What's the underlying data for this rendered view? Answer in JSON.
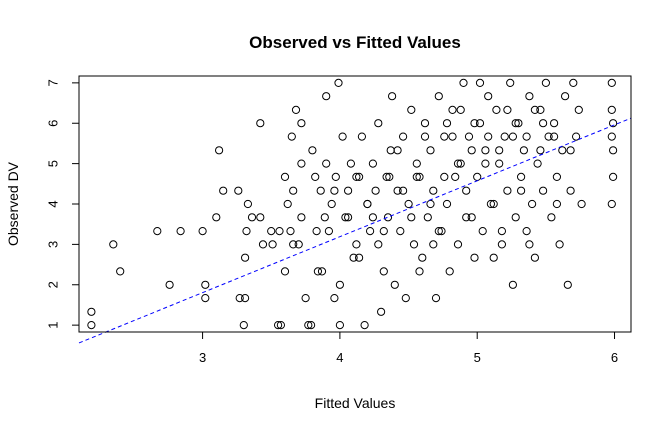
{
  "chart_data": {
    "type": "scatter",
    "title": "Observed vs Fitted Values",
    "xlabel": "Fitted Values",
    "ylabel": "Observed DV",
    "xlim": [
      2.1,
      6.12
    ],
    "ylim": [
      0.83,
      7.17
    ],
    "x_ticks": [
      "3",
      "4",
      "5",
      "6"
    ],
    "y_ticks": [
      "1",
      "2",
      "3",
      "4",
      "5",
      "6",
      "7"
    ],
    "grid": false,
    "marker": "open-circle",
    "colors": {
      "points": "#000000",
      "fit_line": "#0000ff",
      "axes": "#000000"
    },
    "fit_line": {
      "style": "dashed",
      "intercept": -2.35,
      "slope": 1.385
    },
    "points": [
      [
        2.19,
        1.33
      ],
      [
        2.19,
        1.0
      ],
      [
        2.35,
        3.0
      ],
      [
        2.4,
        2.33
      ],
      [
        2.67,
        3.33
      ],
      [
        2.76,
        2.0
      ],
      [
        2.84,
        3.33
      ],
      [
        3.0,
        3.33
      ],
      [
        3.02,
        2.0
      ],
      [
        3.02,
        1.67
      ],
      [
        3.12,
        5.33
      ],
      [
        3.15,
        4.33
      ],
      [
        3.1,
        3.67
      ],
      [
        3.26,
        4.33
      ],
      [
        3.27,
        1.67
      ],
      [
        3.3,
        1.0
      ],
      [
        3.31,
        2.67
      ],
      [
        3.32,
        3.33
      ],
      [
        3.33,
        4.0
      ],
      [
        3.31,
        1.67
      ],
      [
        3.36,
        3.67
      ],
      [
        3.42,
        3.67
      ],
      [
        3.42,
        6.0
      ],
      [
        3.44,
        3.0
      ],
      [
        3.5,
        3.33
      ],
      [
        3.51,
        3.0
      ],
      [
        3.55,
        1.0
      ],
      [
        3.57,
        1.0
      ],
      [
        3.6,
        2.33
      ],
      [
        3.6,
        4.67
      ],
      [
        3.62,
        4.0
      ],
      [
        3.64,
        3.33
      ],
      [
        3.65,
        5.67
      ],
      [
        3.66,
        4.33
      ],
      [
        3.68,
        6.33
      ],
      [
        3.7,
        3.0
      ],
      [
        3.72,
        5.0
      ],
      [
        3.72,
        6.0
      ],
      [
        3.75,
        1.67
      ],
      [
        3.77,
        1.0
      ],
      [
        3.79,
        1.0
      ],
      [
        3.8,
        5.33
      ],
      [
        3.82,
        4.67
      ],
      [
        3.83,
        3.33
      ],
      [
        3.84,
        2.33
      ],
      [
        3.87,
        2.33
      ],
      [
        3.89,
        3.67
      ],
      [
        3.9,
        5.0
      ],
      [
        3.9,
        6.67
      ],
      [
        3.92,
        3.33
      ],
      [
        3.94,
        4.0
      ],
      [
        3.96,
        1.67
      ],
      [
        3.99,
        7.0
      ],
      [
        3.97,
        4.67
      ],
      [
        4.0,
        2.0
      ],
      [
        4.0,
        1.0
      ],
      [
        4.02,
        5.67
      ],
      [
        4.04,
        3.67
      ],
      [
        4.06,
        4.33
      ],
      [
        4.08,
        5.0
      ],
      [
        4.1,
        2.67
      ],
      [
        4.12,
        3.0
      ],
      [
        4.14,
        4.67
      ],
      [
        4.16,
        5.67
      ],
      [
        4.18,
        1.0
      ],
      [
        4.2,
        4.0
      ],
      [
        4.22,
        3.33
      ],
      [
        4.24,
        5.0
      ],
      [
        4.26,
        4.33
      ],
      [
        4.28,
        6.0
      ],
      [
        4.3,
        1.33
      ],
      [
        4.32,
        2.33
      ],
      [
        4.34,
        4.67
      ],
      [
        4.35,
        3.67
      ],
      [
        4.37,
        5.33
      ],
      [
        4.38,
        6.67
      ],
      [
        4.4,
        2.0
      ],
      [
        4.42,
        4.33
      ],
      [
        4.44,
        3.33
      ],
      [
        4.46,
        5.67
      ],
      [
        4.48,
        1.67
      ],
      [
        4.5,
        4.0
      ],
      [
        4.52,
        6.33
      ],
      [
        4.54,
        3.0
      ],
      [
        4.56,
        5.0
      ],
      [
        4.58,
        4.67
      ],
      [
        4.6,
        2.67
      ],
      [
        4.62,
        6.0
      ],
      [
        4.64,
        3.67
      ],
      [
        4.66,
        5.33
      ],
      [
        4.68,
        4.33
      ],
      [
        4.7,
        1.67
      ],
      [
        4.72,
        6.67
      ],
      [
        4.74,
        3.33
      ],
      [
        4.76,
        5.67
      ],
      [
        4.78,
        4.0
      ],
      [
        4.8,
        2.33
      ],
      [
        4.82,
        6.33
      ],
      [
        4.84,
        4.67
      ],
      [
        4.86,
        3.0
      ],
      [
        4.88,
        5.0
      ],
      [
        4.9,
        7.0
      ],
      [
        4.92,
        4.33
      ],
      [
        4.94,
        5.67
      ],
      [
        4.96,
        3.67
      ],
      [
        4.98,
        6.0
      ],
      [
        5.0,
        4.67
      ],
      [
        5.02,
        7.0
      ],
      [
        5.04,
        3.33
      ],
      [
        5.06,
        5.33
      ],
      [
        5.08,
        6.67
      ],
      [
        5.1,
        4.0
      ],
      [
        5.12,
        2.67
      ],
      [
        5.14,
        6.33
      ],
      [
        5.16,
        5.0
      ],
      [
        5.18,
        3.0
      ],
      [
        5.2,
        5.67
      ],
      [
        5.22,
        4.33
      ],
      [
        5.24,
        7.0
      ],
      [
        5.26,
        2.0
      ],
      [
        5.28,
        3.67
      ],
      [
        5.3,
        6.0
      ],
      [
        5.32,
        4.67
      ],
      [
        5.34,
        5.33
      ],
      [
        5.36,
        3.33
      ],
      [
        5.38,
        6.67
      ],
      [
        5.4,
        4.0
      ],
      [
        5.42,
        2.67
      ],
      [
        5.44,
        5.0
      ],
      [
        5.46,
        6.33
      ],
      [
        5.48,
        4.33
      ],
      [
        5.5,
        7.0
      ],
      [
        5.52,
        5.67
      ],
      [
        5.54,
        3.67
      ],
      [
        5.56,
        6.0
      ],
      [
        5.58,
        4.67
      ],
      [
        5.6,
        3.0
      ],
      [
        5.62,
        5.33
      ],
      [
        5.64,
        6.67
      ],
      [
        5.66,
        2.0
      ],
      [
        5.68,
        4.33
      ],
      [
        5.7,
        7.0
      ],
      [
        5.72,
        5.67
      ],
      [
        5.74,
        6.33
      ],
      [
        5.76,
        4.0
      ],
      [
        5.98,
        7.0
      ],
      [
        5.98,
        6.33
      ],
      [
        5.98,
        5.67
      ],
      [
        5.98,
        4.0
      ],
      [
        5.99,
        4.67
      ],
      [
        5.99,
        5.33
      ],
      [
        5.99,
        6.0
      ],
      [
        3.96,
        4.33
      ],
      [
        4.06,
        3.67
      ],
      [
        4.2,
        4.0
      ],
      [
        4.36,
        4.67
      ],
      [
        4.46,
        4.33
      ],
      [
        4.56,
        4.67
      ],
      [
        4.66,
        4.0
      ],
      [
        4.76,
        4.67
      ],
      [
        4.86,
        5.0
      ],
      [
        4.96,
        5.33
      ],
      [
        5.06,
        5.0
      ],
      [
        5.16,
        5.33
      ],
      [
        5.26,
        5.67
      ],
      [
        5.36,
        5.67
      ],
      [
        5.46,
        5.33
      ],
      [
        5.56,
        5.67
      ],
      [
        4.32,
        3.33
      ],
      [
        4.52,
        3.67
      ],
      [
        4.72,
        3.33
      ],
      [
        4.92,
        3.67
      ],
      [
        5.12,
        4.0
      ],
      [
        5.32,
        4.33
      ],
      [
        4.42,
        5.33
      ],
      [
        4.62,
        5.67
      ],
      [
        4.82,
        5.67
      ],
      [
        5.02,
        6.0
      ],
      [
        5.22,
        6.33
      ],
      [
        5.42,
        6.33
      ],
      [
        3.72,
        3.67
      ],
      [
        3.86,
        4.33
      ],
      [
        4.12,
        4.67
      ],
      [
        4.24,
        3.67
      ],
      [
        4.78,
        6.0
      ],
      [
        4.88,
        6.33
      ],
      [
        5.08,
        5.67
      ],
      [
        5.28,
        6.0
      ],
      [
        5.48,
        6.0
      ],
      [
        5.68,
        5.33
      ],
      [
        5.58,
        4.0
      ],
      [
        4.68,
        3.0
      ],
      [
        4.58,
        2.33
      ],
      [
        4.98,
        2.67
      ],
      [
        5.18,
        3.33
      ],
      [
        5.38,
        3.0
      ],
      [
        4.28,
        3.0
      ],
      [
        4.14,
        2.67
      ],
      [
        3.56,
        3.33
      ],
      [
        3.66,
        3.0
      ]
    ]
  }
}
